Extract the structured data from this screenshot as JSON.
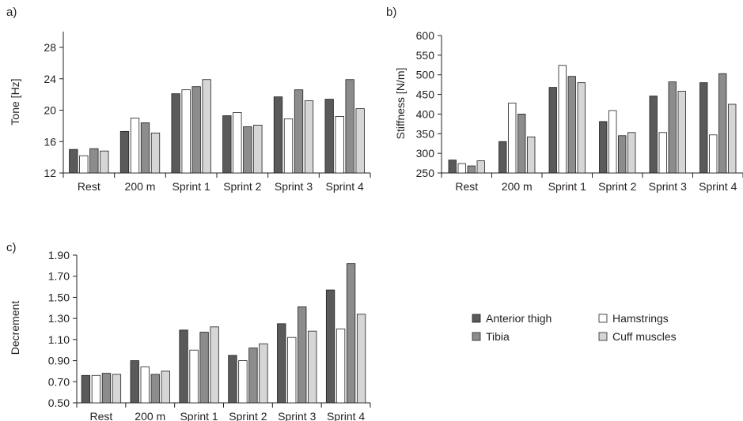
{
  "legend": {
    "items": [
      {
        "label": "Anterior thigh",
        "color": "#5a5a5a"
      },
      {
        "label": "Hamstrings",
        "color": "#ffffff"
      },
      {
        "label": "Tibia",
        "color": "#8c8c8c"
      },
      {
        "label": "Cuff muscles",
        "color": "#d6d6d6"
      }
    ]
  },
  "chart_data": [
    {
      "panel": "a)",
      "type": "bar",
      "ylabel": "Tone [Hz]",
      "xlabel": "",
      "ylim": [
        12,
        30
      ],
      "yticks": [
        "12",
        "16",
        "20",
        "24",
        "28"
      ],
      "yticks_num": [
        12,
        16,
        20,
        24,
        28
      ],
      "categories": [
        "Rest",
        "200 m",
        "Sprint 1",
        "Sprint 2",
        "Sprint 3",
        "Sprint 4"
      ],
      "series": [
        {
          "name": "Anterior thigh",
          "values": [
            15.0,
            17.3,
            22.1,
            19.3,
            21.7,
            21.4
          ]
        },
        {
          "name": "Hamstrings",
          "values": [
            14.2,
            19.0,
            22.6,
            19.7,
            18.9,
            19.2
          ]
        },
        {
          "name": "Tibia",
          "values": [
            15.1,
            18.4,
            23.0,
            17.9,
            22.6,
            23.9
          ]
        },
        {
          "name": "Cuff muscles",
          "values": [
            14.8,
            17.1,
            23.9,
            18.1,
            21.2,
            20.2
          ]
        }
      ]
    },
    {
      "panel": "b)",
      "type": "bar",
      "ylabel": "Stiffness [N/m]",
      "xlabel": "",
      "ylim": [
        250,
        600
      ],
      "yticks": [
        "250",
        "300",
        "350",
        "400",
        "450",
        "500",
        "550",
        "600"
      ],
      "yticks_num": [
        250,
        300,
        350,
        400,
        450,
        500,
        550,
        600
      ],
      "categories": [
        "Rest",
        "200 m",
        "Sprint 1",
        "Sprint 2",
        "Sprint 3",
        "Sprint 4"
      ],
      "series": [
        {
          "name": "Anterior thigh",
          "values": [
            283,
            330,
            468,
            381,
            446,
            480
          ]
        },
        {
          "name": "Hamstrings",
          "values": [
            274,
            428,
            524,
            409,
            353,
            347
          ]
        },
        {
          "name": "Tibia",
          "values": [
            268,
            400,
            496,
            345,
            482,
            503
          ]
        },
        {
          "name": "Cuff muscles",
          "values": [
            281,
            342,
            480,
            353,
            458,
            425
          ]
        }
      ]
    },
    {
      "panel": "c)",
      "type": "bar",
      "ylabel": "Decrement",
      "xlabel": "",
      "ylim": [
        0.5,
        1.9
      ],
      "yticks": [
        "0.50",
        "0.70",
        "0.90",
        "1.10",
        "1.30",
        "1.50",
        "1.70",
        "1.90"
      ],
      "yticks_num": [
        0.5,
        0.7,
        0.9,
        1.1,
        1.3,
        1.5,
        1.7,
        1.9
      ],
      "categories": [
        "Rest",
        "200 m",
        "Sprint 1",
        "Sprint 2",
        "Sprint 3",
        "Sprint 4"
      ],
      "series": [
        {
          "name": "Anterior thigh",
          "values": [
            0.76,
            0.9,
            1.19,
            0.95,
            1.25,
            1.57
          ]
        },
        {
          "name": "Hamstrings",
          "values": [
            0.76,
            0.84,
            1.0,
            0.9,
            1.12,
            1.2
          ]
        },
        {
          "name": "Tibia",
          "values": [
            0.78,
            0.77,
            1.17,
            1.02,
            1.41,
            1.82
          ]
        },
        {
          "name": "Cuff muscles",
          "values": [
            0.77,
            0.8,
            1.22,
            1.06,
            1.18,
            1.34
          ]
        }
      ]
    }
  ]
}
